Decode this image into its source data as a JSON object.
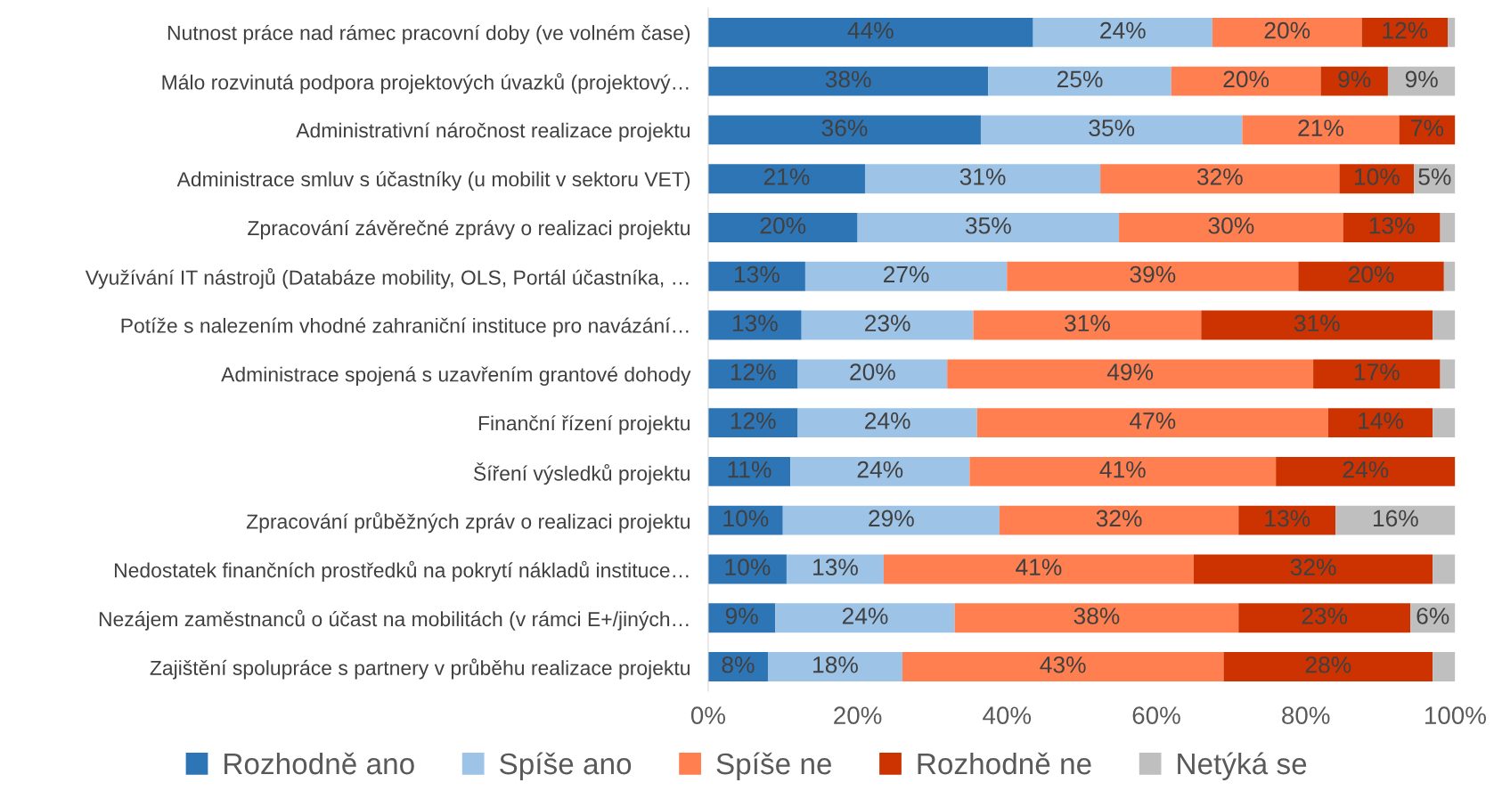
{
  "chart_data": {
    "type": "bar",
    "orientation": "horizontal",
    "stacked": true,
    "legend": "bottom",
    "grid": false,
    "categories": [
      "Nutnost práce nad rámec pracovní doby (ve volném čase)",
      "Málo rozvinutá podpora projektových úvazků (projektový…",
      "Administrativní náročnost realizace projektu",
      "Administrace smluv s účastníky (u mobilit v sektoru VET)",
      "Zpracování závěrečné zprávy o realizaci projektu",
      "Využívání IT nástrojů (Databáze mobility, OLS, Portál účastníka, …",
      "Potíže s nalezením vhodné zahraniční instituce pro navázání…",
      "Administrace spojená s uzavřením grantové dohody",
      "Finanční řízení projektu",
      "Šíření výsledků projektu",
      "Zpracování průběžných zpráv o realizaci projektu",
      "Nedostatek finančních prostředků na pokrytí nákladů instituce…",
      "Nezájem zaměstnanců o účast na mobilitách (v rámci E+/jiných…",
      "Zajištění spolupráce s partnery v průběhu realizace projektu"
    ],
    "xlim": [
      0,
      100
    ],
    "xticks": [
      {
        "value": 0,
        "label": "0%"
      },
      {
        "value": 20,
        "label": "20%"
      },
      {
        "value": 40,
        "label": "40%"
      },
      {
        "value": 60,
        "label": "60%"
      },
      {
        "value": 80,
        "label": "80%"
      },
      {
        "value": 100,
        "label": "100%"
      }
    ],
    "series": [
      {
        "name": "Rozhodně ano",
        "color": "#2e75b6",
        "values": [
          43.5,
          37.5,
          36.5,
          21,
          20,
          13,
          12.5,
          12,
          12,
          11,
          10,
          10.5,
          9,
          8
        ],
        "value_labels": [
          "44%",
          "38%",
          "36%",
          "21%",
          "20%",
          "13%",
          "13%",
          "12%",
          "12%",
          "11%",
          "10%",
          "10%",
          "9%",
          "8%"
        ]
      },
      {
        "name": "Spíše ano",
        "color": "#9dc3e6",
        "values": [
          24,
          24.5,
          35,
          31.5,
          35,
          27,
          23,
          20,
          24,
          24,
          29,
          13,
          24,
          18
        ],
        "value_labels": [
          "24%",
          "25%",
          "35%",
          "31%",
          "35%",
          "27%",
          "23%",
          "20%",
          "24%",
          "24%",
          "29%",
          "13%",
          "24%",
          "18%"
        ]
      },
      {
        "name": "Spíše ne",
        "color": "#ff7f50",
        "values": [
          20,
          20,
          21,
          32,
          30,
          39,
          30.5,
          49,
          47,
          41,
          32,
          41.5,
          38,
          43
        ],
        "value_labels": [
          "20%",
          "20%",
          "21%",
          "32%",
          "30%",
          "39%",
          "31%",
          "49%",
          "47%",
          "41%",
          "32%",
          "41%",
          "38%",
          "43%"
        ]
      },
      {
        "name": "Rozhodně ne",
        "color": "#cc3300",
        "values": [
          11.5,
          9,
          7.5,
          10,
          13,
          19.5,
          31,
          17,
          14,
          24,
          13,
          32,
          23,
          28
        ],
        "value_labels": [
          "12%",
          "9%",
          "7%",
          "10%",
          "13%",
          "20%",
          "31%",
          "17%",
          "14%",
          "24%",
          "13%",
          "32%",
          "23%",
          "28%"
        ]
      },
      {
        "name": "Netýká se",
        "color": "#bfbfbf",
        "values": [
          1,
          9,
          null,
          5.5,
          2,
          1.5,
          3,
          2,
          3,
          null,
          16,
          3,
          6,
          3
        ],
        "value_labels": [
          null,
          "9%",
          null,
          "5%",
          null,
          null,
          null,
          null,
          null,
          null,
          "16%",
          null,
          "6%",
          null
        ]
      }
    ]
  }
}
